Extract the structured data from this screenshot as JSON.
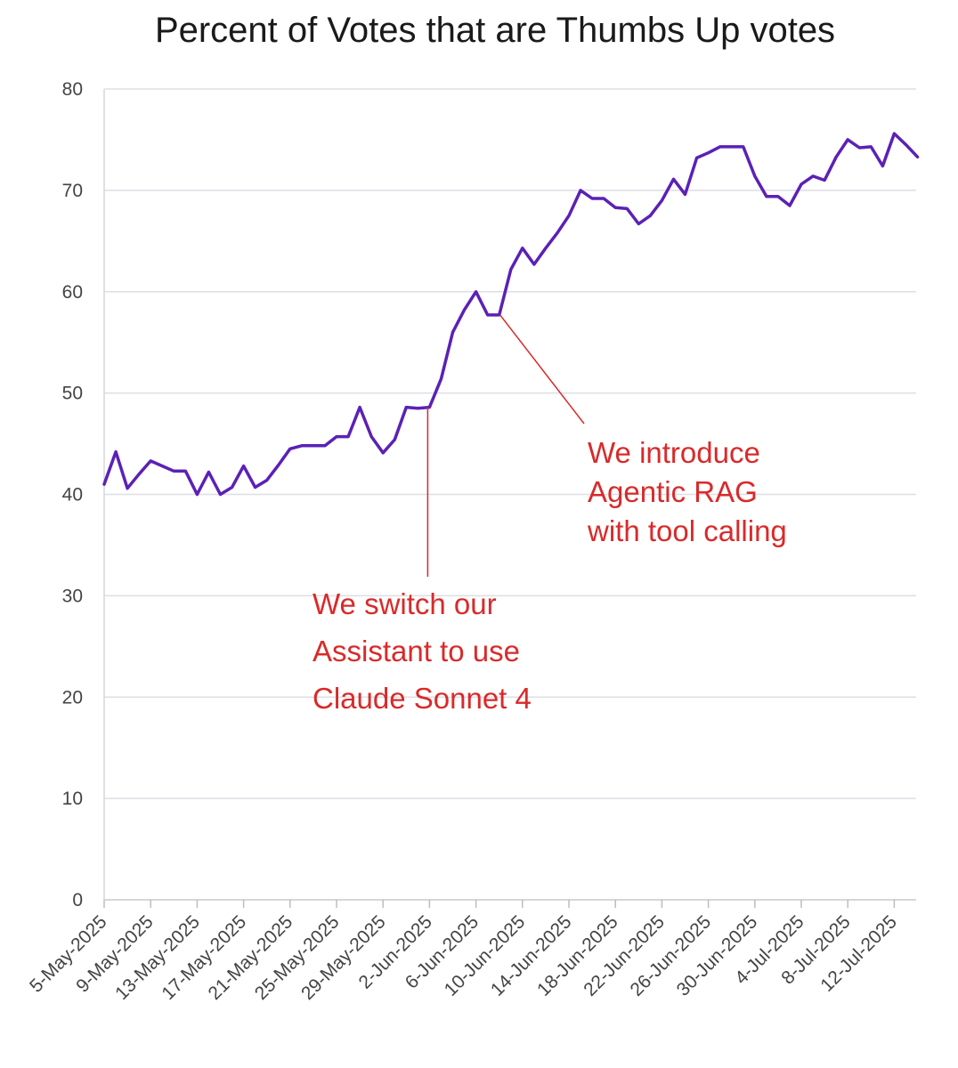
{
  "chart_data": {
    "type": "line",
    "title": "Percent of Votes that are Thumbs Up votes",
    "xlabel": "",
    "ylabel": "",
    "ylim": [
      0,
      80
    ],
    "yticks": [
      0,
      10,
      20,
      30,
      40,
      50,
      60,
      70,
      80
    ],
    "grid": true,
    "line_color": "#5b21b6",
    "annotation_color": "#d92a2a",
    "x_tick_labels": [
      "5-May-2025",
      "9-May-2025",
      "13-May-2025",
      "17-May-2025",
      "21-May-2025",
      "25-May-2025",
      "29-May-2025",
      "2-Jun-2025",
      "6-Jun-2025",
      "10-Jun-2025",
      "14-Jun-2025",
      "18-Jun-2025",
      "22-Jun-2025",
      "26-Jun-2025",
      "30-Jun-2025",
      "4-Jul-2025",
      "8-Jul-2025",
      "12-Jul-2025"
    ],
    "x": [
      "5-May-2025",
      "6-May-2025",
      "7-May-2025",
      "8-May-2025",
      "9-May-2025",
      "10-May-2025",
      "11-May-2025",
      "12-May-2025",
      "13-May-2025",
      "14-May-2025",
      "15-May-2025",
      "16-May-2025",
      "17-May-2025",
      "18-May-2025",
      "19-May-2025",
      "20-May-2025",
      "21-May-2025",
      "22-May-2025",
      "23-May-2025",
      "24-May-2025",
      "25-May-2025",
      "26-May-2025",
      "27-May-2025",
      "28-May-2025",
      "29-May-2025",
      "30-May-2025",
      "31-May-2025",
      "1-Jun-2025",
      "2-Jun-2025",
      "3-Jun-2025",
      "4-Jun-2025",
      "5-Jun-2025",
      "6-Jun-2025",
      "7-Jun-2025",
      "8-Jun-2025",
      "9-Jun-2025",
      "10-Jun-2025",
      "11-Jun-2025",
      "12-Jun-2025",
      "13-Jun-2025",
      "14-Jun-2025",
      "15-Jun-2025",
      "16-Jun-2025",
      "17-Jun-2025",
      "18-Jun-2025",
      "19-Jun-2025",
      "20-Jun-2025",
      "21-Jun-2025",
      "22-Jun-2025",
      "23-Jun-2025",
      "24-Jun-2025",
      "25-Jun-2025",
      "26-Jun-2025",
      "27-Jun-2025",
      "28-Jun-2025",
      "29-Jun-2025",
      "30-Jun-2025",
      "1-Jul-2025",
      "2-Jul-2025",
      "3-Jul-2025",
      "4-Jul-2025",
      "5-Jul-2025",
      "6-Jul-2025",
      "7-Jul-2025",
      "8-Jul-2025",
      "9-Jul-2025",
      "10-Jul-2025",
      "11-Jul-2025",
      "12-Jul-2025",
      "13-Jul-2025",
      "14-Jul-2025"
    ],
    "series": [
      {
        "values": [
          41.0,
          44.2,
          40.6,
          42.0,
          43.3,
          42.8,
          42.3,
          42.3,
          40.0,
          42.2,
          40.0,
          40.7,
          42.8,
          40.7,
          41.4,
          42.9,
          44.5,
          44.8,
          44.8,
          44.8,
          45.7,
          45.7,
          48.6,
          45.7,
          44.1,
          45.4,
          48.6,
          48.5,
          48.6,
          51.4,
          56.0,
          58.2,
          60.0,
          57.7,
          57.7,
          62.2,
          64.3,
          62.7,
          64.3,
          65.8,
          67.5,
          70.0,
          69.2,
          69.2,
          68.3,
          68.2,
          66.7,
          67.5,
          69.0,
          71.1,
          69.6,
          73.2,
          73.7,
          74.3,
          74.3,
          74.3,
          71.4,
          69.4,
          69.4,
          68.5,
          70.6,
          71.4,
          71.0,
          73.3,
          75.0,
          74.2,
          74.3,
          72.4,
          75.6,
          74.5,
          73.3
        ]
      }
    ],
    "annotations": [
      {
        "lines": [
          "We switch our",
          "Assistant to use",
          "Claude Sonnet 4"
        ],
        "x": "2-Jun-2025",
        "y": 48.6
      },
      {
        "lines": [
          "We introduce",
          "Agentic RAG",
          "with tool calling"
        ],
        "x": "8-Jun-2025",
        "y": 57.7
      }
    ]
  }
}
